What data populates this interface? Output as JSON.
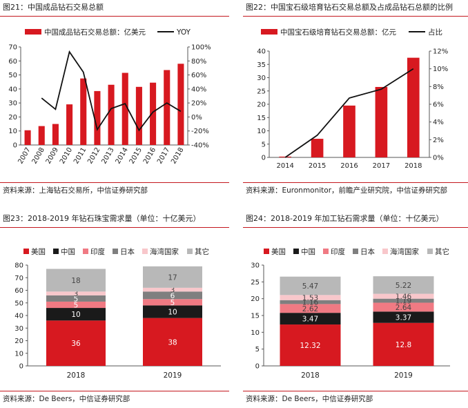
{
  "chart_data": [
    {
      "type": "bar",
      "title": "图21：中国成品钻石交易总额",
      "source": "资料来源：上海钻石交易所，中信证券研究部",
      "categories": [
        "2007",
        "2008",
        "2009",
        "2010",
        "2011",
        "2012",
        "2013",
        "2014",
        "2015",
        "2016",
        "2017",
        "2018"
      ],
      "series": [
        {
          "name": "中国成品钻石交易总额：亿美元",
          "type": "bar",
          "axis": "left",
          "color": "#d71920",
          "values": [
            10.5,
            13.5,
            15,
            29,
            47.5,
            38.5,
            43,
            51.5,
            41.5,
            44.5,
            53.5,
            58
          ]
        },
        {
          "name": "YOY",
          "type": "line",
          "axis": "right",
          "color": "#111111",
          "values": [
            null,
            0.27,
            0.11,
            0.93,
            0.64,
            -0.18,
            0.12,
            0.19,
            -0.19,
            0.07,
            0.2,
            0.08
          ]
        }
      ],
      "y_left": {
        "min": 0,
        "max": 70,
        "ticks": [
          0,
          10,
          20,
          30,
          40,
          50,
          60,
          70
        ]
      },
      "y_right": {
        "min": -0.4,
        "max": 1.0,
        "ticks": [
          "-40%",
          "-20%",
          "0%",
          "20%",
          "40%",
          "60%",
          "80%",
          "100%"
        ]
      },
      "legend": "top"
    },
    {
      "type": "bar",
      "title": "图22：中国宝石级培育钻石交易总额及占成品钻石总额的比例",
      "source": "资料来源：Euronmonitor，前瞻产业研究院，中信证券研究部",
      "categories": [
        "2014",
        "2015",
        "2016",
        "2017",
        "2018"
      ],
      "series": [
        {
          "name": "中国宝石级培育钻石交易总额：亿元",
          "type": "bar",
          "axis": "left",
          "color": "#d71920",
          "values": [
            0.3,
            7,
            19.5,
            26.5,
            37.5
          ]
        },
        {
          "name": "占比",
          "type": "line",
          "axis": "right",
          "color": "#111111",
          "values": [
            0.0,
            0.025,
            0.067,
            0.077,
            0.1
          ]
        }
      ],
      "y_left": {
        "min": 0,
        "max": 40,
        "ticks": [
          0,
          5,
          10,
          15,
          20,
          25,
          30,
          35,
          40
        ]
      },
      "y_right": {
        "min": 0,
        "max": 0.12,
        "ticks": [
          "0%",
          "2%",
          "4%",
          "6%",
          "8%",
          "10%",
          "12%"
        ]
      },
      "legend": "top"
    },
    {
      "type": "bar",
      "stacked": true,
      "title": "图23：2018-2019 年钻石珠宝需求量（单位：十亿美元）",
      "source": "资料来源：De Beers，中信证券研究部",
      "categories": [
        "2018",
        "2019"
      ],
      "series": [
        {
          "name": "美国",
          "color": "#d71920",
          "label_color": "#ffffff",
          "values": [
            36,
            38
          ]
        },
        {
          "name": "中国",
          "color": "#1a1a1a",
          "label_color": "#ffffff",
          "values": [
            10,
            10
          ]
        },
        {
          "name": "印度",
          "color": "#f07a83",
          "label_color": "#ffffff",
          "values": [
            5,
            5
          ]
        },
        {
          "name": "日本",
          "color": "#7f7f7f",
          "label_color": "#ffffff",
          "values": [
            5,
            6
          ]
        },
        {
          "name": "海湾国家",
          "color": "#f8c7cb",
          "label_color": "#444444",
          "values": [
            3,
            3
          ]
        },
        {
          "name": "其它",
          "color": "#b8b8b8",
          "label_color": "#444444",
          "values": [
            18,
            17
          ]
        }
      ],
      "y": {
        "min": 0,
        "max": 80,
        "ticks": [
          0,
          10,
          20,
          30,
          40,
          50,
          60,
          70,
          80
        ]
      },
      "legend": "top"
    },
    {
      "type": "bar",
      "stacked": true,
      "title": "图24：2018-2019 年加工钻石需求量（单位：十亿美元）",
      "source": "资料来源：De Beers，中信证券研究部",
      "categories": [
        "2018",
        "2019"
      ],
      "series": [
        {
          "name": "美国",
          "color": "#d71920",
          "label_color": "#ffffff",
          "values": [
            12.32,
            12.8
          ]
        },
        {
          "name": "中国",
          "color": "#1a1a1a",
          "label_color": "#ffffff",
          "values": [
            3.47,
            3.37
          ]
        },
        {
          "name": "印度",
          "color": "#f07a83",
          "label_color": "#444444",
          "values": [
            2.62,
            2.64
          ]
        },
        {
          "name": "日本",
          "color": "#7f7f7f",
          "label_color": "#444444",
          "values": [
            1.16,
            1.19
          ]
        },
        {
          "name": "海湾国家",
          "color": "#f8c7cb",
          "label_color": "#444444",
          "values": [
            1.53,
            1.46
          ]
        },
        {
          "name": "其它",
          "color": "#b8b8b8",
          "label_color": "#444444",
          "values": [
            5.47,
            5.22
          ]
        }
      ],
      "y": {
        "min": 0,
        "max": 30,
        "ticks": [
          0,
          5,
          10,
          15,
          20,
          25,
          30
        ]
      },
      "legend": "top"
    }
  ]
}
